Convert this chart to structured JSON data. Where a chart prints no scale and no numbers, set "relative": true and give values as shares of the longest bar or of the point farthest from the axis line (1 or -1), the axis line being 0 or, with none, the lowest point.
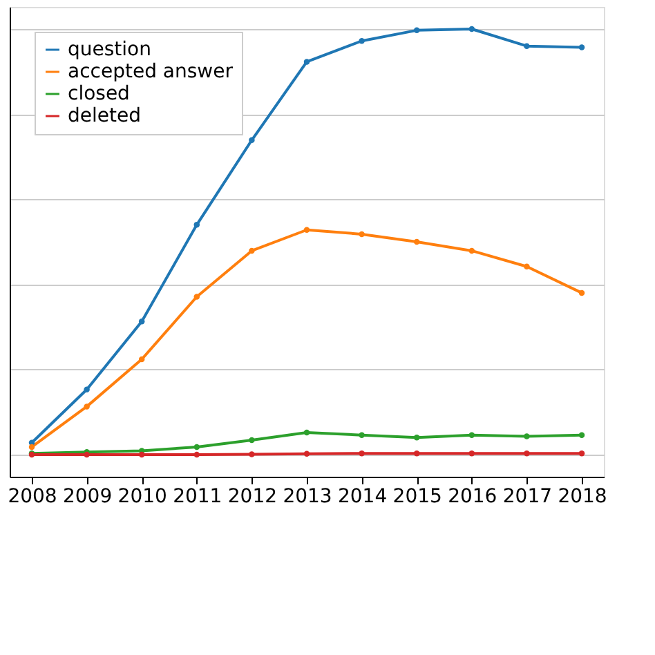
{
  "chart_data": {
    "type": "line",
    "relative": true,
    "categories": [
      "2008",
      "2009",
      "2010",
      "2011",
      "2012",
      "2013",
      "2014",
      "2015",
      "2016",
      "2017",
      "2018"
    ],
    "series": [
      {
        "name": "question",
        "color": "#1f77b4",
        "values": [
          0.028,
          0.153,
          0.313,
          0.54,
          0.739,
          0.923,
          0.972,
          0.997,
          1,
          0.96,
          0.957
        ]
      },
      {
        "name": "accepted answer",
        "color": "#ff7f0e",
        "values": [
          0.018,
          0.113,
          0.224,
          0.371,
          0.479,
          0.528,
          0.518,
          0.5,
          0.479,
          0.442,
          0.38
        ]
      },
      {
        "name": "closed",
        "color": "#2ca02c",
        "values": [
          0.003,
          0.006,
          0.009,
          0.018,
          0.034,
          0.052,
          0.046,
          0.04,
          0.046,
          0.043,
          0.046
        ]
      },
      {
        "name": "deleted",
        "color": "#d62728",
        "values": [
          0,
          0,
          0,
          0,
          0.001,
          0.002,
          0.003,
          0.003,
          0.003,
          0.003,
          0.003
        ]
      }
    ],
    "grid": "y",
    "legend": "top left",
    "marker": "circle",
    "line_style": "solid"
  }
}
